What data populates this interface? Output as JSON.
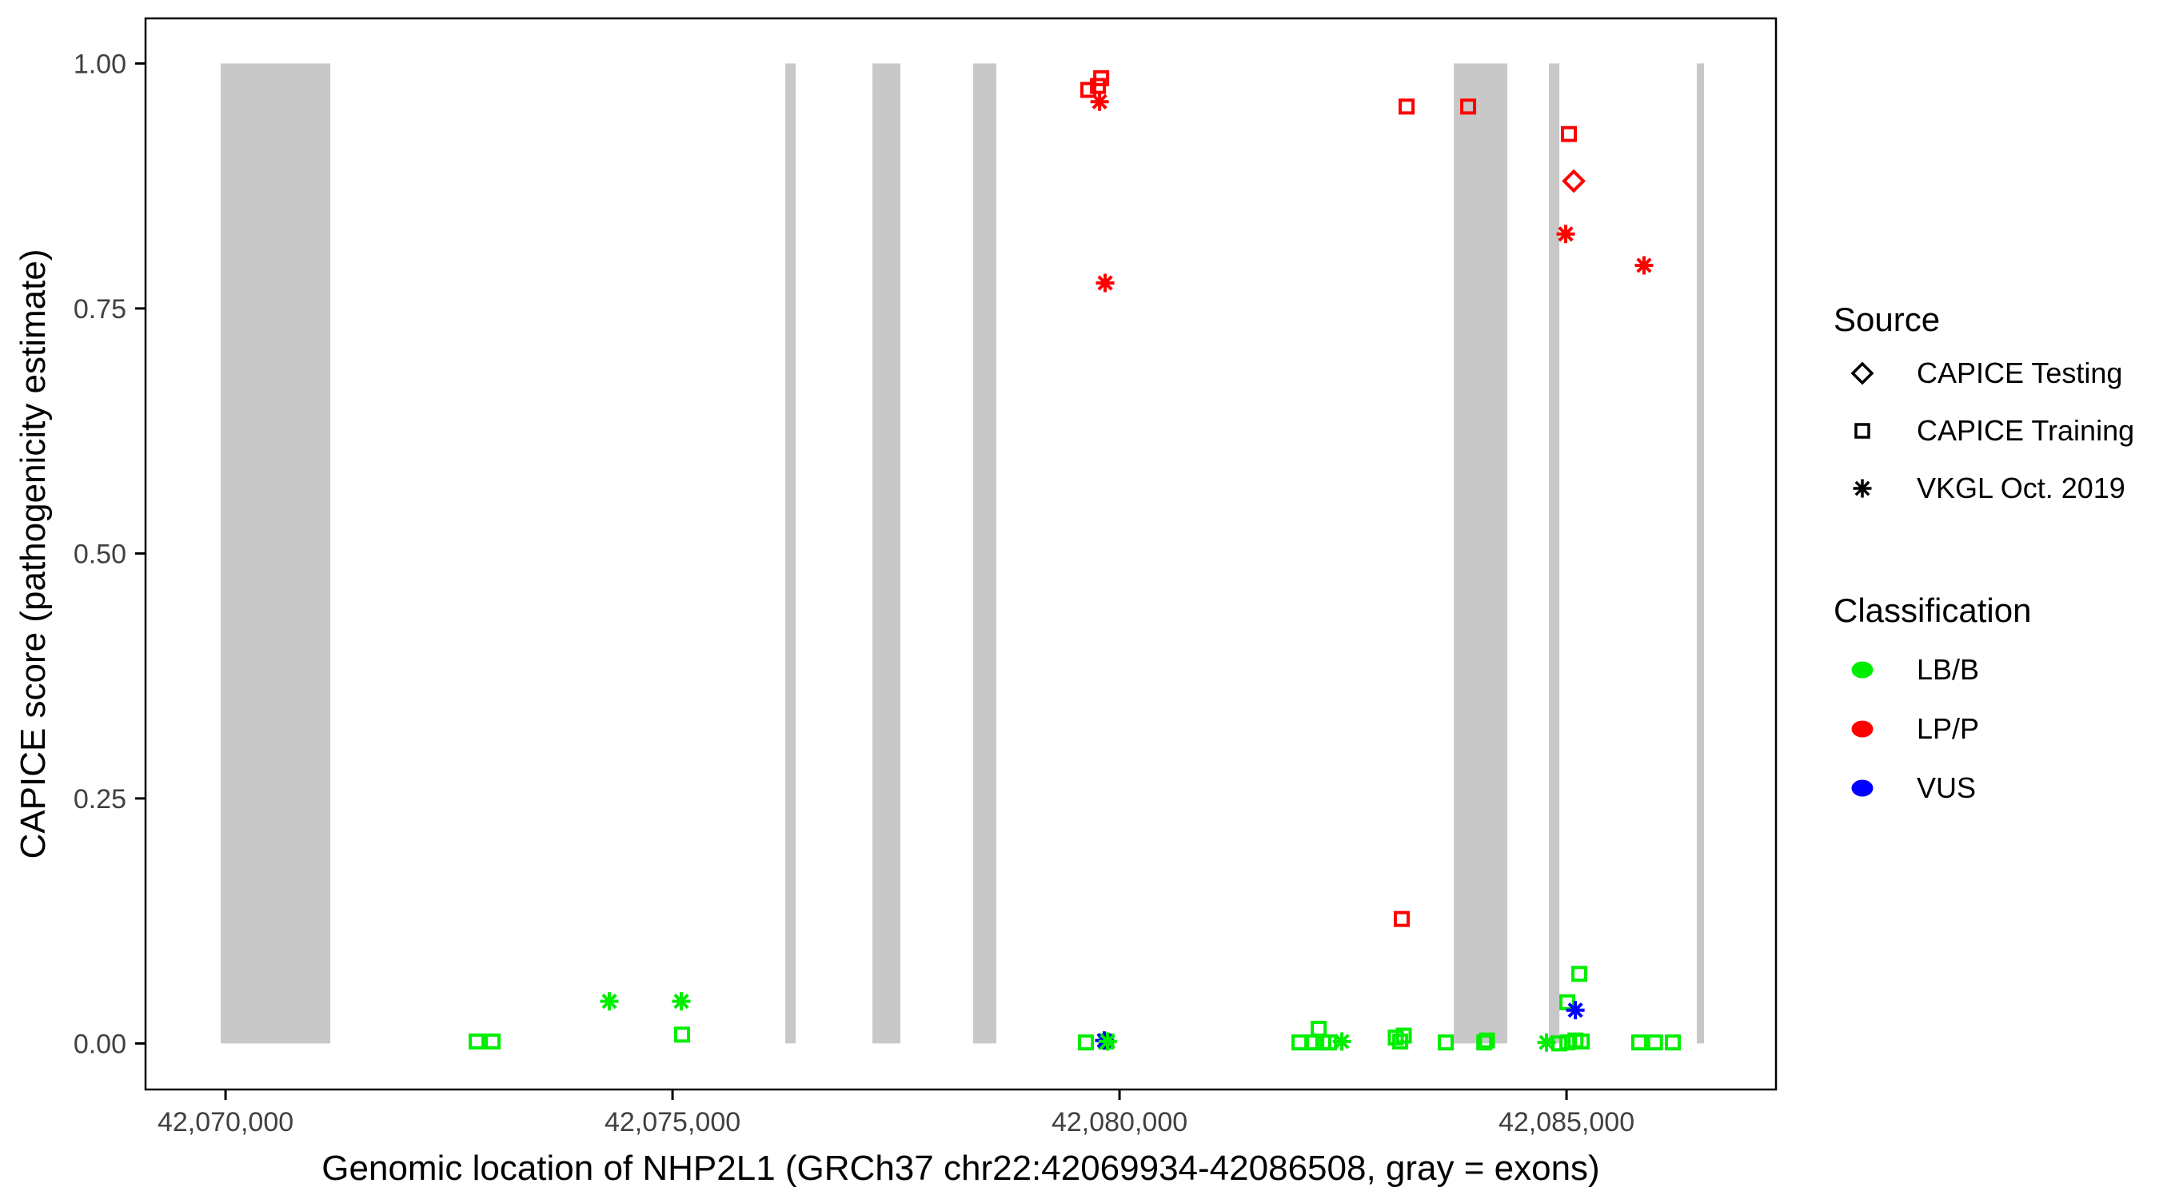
{
  "figure": {
    "background": "#FFFFFF",
    "panel_border_color": "#000000",
    "tick_label_color": "#404040",
    "exon_color": "#C8C8C8"
  },
  "chart_data": {
    "type": "scatter",
    "title": "",
    "xlabel": "Genomic location of NHP2L1 (GRCh37 chr22:42069934-42086508, gray = exons)",
    "ylabel": "CAPICE score (pathogenicity estimate)",
    "xlim": [
      42069105,
      42087343
    ],
    "ylim": [
      -0.047,
      1.046
    ],
    "grid": "off",
    "legend_position": "right",
    "x_ticks": [
      {
        "value": 42070000,
        "label": "42,070,000"
      },
      {
        "value": 42075000,
        "label": "42,075,000"
      },
      {
        "value": 42080000,
        "label": "42,080,000"
      },
      {
        "value": 42085000,
        "label": "42,085,000"
      }
    ],
    "y_ticks": [
      {
        "value": 0.0,
        "label": "0.00"
      },
      {
        "value": 0.25,
        "label": "0.25"
      },
      {
        "value": 0.5,
        "label": "0.50"
      },
      {
        "value": 0.75,
        "label": "0.75"
      },
      {
        "value": 1.0,
        "label": "1.00"
      }
    ],
    "exons_gray_rects_score_span": [
      0,
      1
    ],
    "exons": [
      [
        42069946,
        42071172
      ],
      [
        42076261,
        42076377
      ],
      [
        42077236,
        42077549
      ],
      [
        42078363,
        42078622
      ],
      [
        42083739,
        42084338
      ],
      [
        42084803,
        42084920
      ],
      [
        42086458,
        42086538
      ]
    ],
    "source_shapes": {
      "CAPICE Testing": "diamond",
      "CAPICE Training": "square",
      "VKGL Oct. 2019": "asterisk"
    },
    "classification_colors": {
      "LB/B": "#00EE00",
      "LP/P": "#FF0000",
      "VUS": "#0000FF"
    },
    "points": [
      {
        "x": 42079651,
        "y": 0.973,
        "source": "CAPICE Training",
        "class": "LP/P"
      },
      {
        "x": 42079759,
        "y": 0.977,
        "source": "CAPICE Training",
        "class": "LP/P"
      },
      {
        "x": 42079795,
        "y": 0.985,
        "source": "CAPICE Training",
        "class": "LP/P"
      },
      {
        "x": 42079777,
        "y": 0.961,
        "source": "VKGL Oct. 2019",
        "class": "LP/P"
      },
      {
        "x": 42079839,
        "y": 0.776,
        "source": "VKGL Oct. 2019",
        "class": "LP/P"
      },
      {
        "x": 42083211,
        "y": 0.956,
        "source": "CAPICE Training",
        "class": "LP/P"
      },
      {
        "x": 42083900,
        "y": 0.956,
        "source": "CAPICE Training",
        "class": "LP/P"
      },
      {
        "x": 42083157,
        "y": 0.127,
        "source": "CAPICE Training",
        "class": "LP/P"
      },
      {
        "x": 42085027,
        "y": 0.928,
        "source": "CAPICE Training",
        "class": "LP/P"
      },
      {
        "x": 42085081,
        "y": 0.88,
        "source": "CAPICE Testing",
        "class": "LP/P"
      },
      {
        "x": 42084991,
        "y": 0.826,
        "source": "VKGL Oct. 2019",
        "class": "LP/P"
      },
      {
        "x": 42085867,
        "y": 0.794,
        "source": "VKGL Oct. 2019",
        "class": "LP/P"
      },
      {
        "x": 42072809,
        "y": 0.002,
        "source": "CAPICE Training",
        "class": "LB/B"
      },
      {
        "x": 42072987,
        "y": 0.002,
        "source": "CAPICE Training",
        "class": "LB/B"
      },
      {
        "x": 42074293,
        "y": 0.043,
        "source": "VKGL Oct. 2019",
        "class": "LB/B"
      },
      {
        "x": 42075098,
        "y": 0.043,
        "source": "VKGL Oct. 2019",
        "class": "LB/B"
      },
      {
        "x": 42075107,
        "y": 0.009,
        "source": "CAPICE Training",
        "class": "LB/B"
      },
      {
        "x": 42079624,
        "y": 0.001,
        "source": "CAPICE Training",
        "class": "LB/B"
      },
      {
        "x": 42079852,
        "y": 0.002,
        "source": "CAPICE Training",
        "class": "LB/B"
      },
      {
        "x": 42079830,
        "y": 0.003,
        "source": "VKGL Oct. 2019",
        "class": "VUS"
      },
      {
        "x": 42079868,
        "y": 0.002,
        "source": "VKGL Oct. 2019",
        "class": "LB/B"
      },
      {
        "x": 42082013,
        "y": 0.001,
        "source": "CAPICE Training",
        "class": "LB/B"
      },
      {
        "x": 42082175,
        "y": 0.001,
        "source": "CAPICE Training",
        "class": "LB/B"
      },
      {
        "x": 42082228,
        "y": 0.015,
        "source": "CAPICE Training",
        "class": "LB/B"
      },
      {
        "x": 42082280,
        "y": 0.001,
        "source": "CAPICE Training",
        "class": "LB/B"
      },
      {
        "x": 42082345,
        "y": 0.001,
        "source": "CAPICE Training",
        "class": "LB/B"
      },
      {
        "x": 42082487,
        "y": 0.002,
        "source": "VKGL Oct. 2019",
        "class": "LB/B"
      },
      {
        "x": 42083090,
        "y": 0.006,
        "source": "CAPICE Training",
        "class": "LB/B"
      },
      {
        "x": 42083140,
        "y": 0.002,
        "source": "CAPICE Training",
        "class": "LB/B"
      },
      {
        "x": 42083180,
        "y": 0.008,
        "source": "CAPICE Training",
        "class": "LB/B"
      },
      {
        "x": 42083649,
        "y": 0.001,
        "source": "CAPICE Training",
        "class": "LB/B"
      },
      {
        "x": 42084080,
        "y": 0.001,
        "source": "CAPICE Training",
        "class": "LB/B"
      },
      {
        "x": 42084110,
        "y": 0.003,
        "source": "CAPICE Training",
        "class": "LB/B"
      },
      {
        "x": 42084776,
        "y": 0.001,
        "source": "VKGL Oct. 2019",
        "class": "LB/B"
      },
      {
        "x": 42084920,
        "y": 0.0,
        "source": "CAPICE Training",
        "class": "LB/B"
      },
      {
        "x": 42085010,
        "y": 0.001,
        "source": "CAPICE Training",
        "class": "LB/B"
      },
      {
        "x": 42085100,
        "y": 0.003,
        "source": "CAPICE Training",
        "class": "LB/B"
      },
      {
        "x": 42085170,
        "y": 0.002,
        "source": "CAPICE Training",
        "class": "LB/B"
      },
      {
        "x": 42085009,
        "y": 0.042,
        "source": "CAPICE Training",
        "class": "LB/B"
      },
      {
        "x": 42085099,
        "y": 0.034,
        "source": "VKGL Oct. 2019",
        "class": "VUS"
      },
      {
        "x": 42085143,
        "y": 0.071,
        "source": "CAPICE Training",
        "class": "LB/B"
      },
      {
        "x": 42085813,
        "y": 0.001,
        "source": "CAPICE Training",
        "class": "LB/B"
      },
      {
        "x": 42085990,
        "y": 0.001,
        "source": "CAPICE Training",
        "class": "LB/B"
      },
      {
        "x": 42086189,
        "y": 0.001,
        "source": "CAPICE Training",
        "class": "LB/B"
      }
    ]
  },
  "legend": {
    "source": {
      "title": "Source",
      "items": [
        {
          "label": "CAPICE Testing",
          "shape": "diamond"
        },
        {
          "label": "CAPICE Training",
          "shape": "square"
        },
        {
          "label": "VKGL Oct. 2019",
          "shape": "asterisk"
        }
      ]
    },
    "classification": {
      "title": "Classification",
      "items": [
        {
          "label": "LB/B",
          "color": "#00EE00"
        },
        {
          "label": "LP/P",
          "color": "#FF0000"
        },
        {
          "label": "VUS",
          "color": "#0000FF"
        }
      ]
    }
  }
}
